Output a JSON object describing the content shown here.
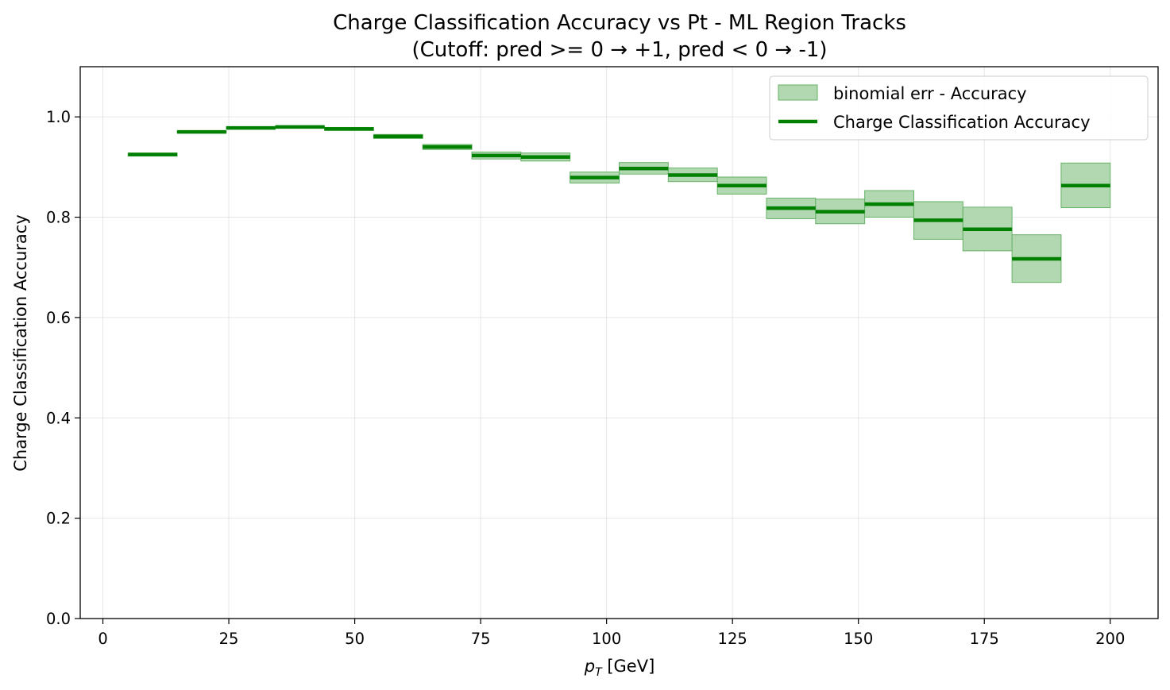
{
  "chart_data": {
    "type": "step",
    "title": "Charge Classification Accuracy vs Pt - ML Region Tracks",
    "subtitle": "(Cutoff: pred >= 0 → +1, pred < 0 → -1)",
    "xlabel_main": "p",
    "xlabel_sub": "T",
    "xlabel_unit": " [GeV]",
    "ylabel": "Charge Classification Accuracy",
    "xlim": [
      -4.5,
      209.5
    ],
    "ylim": [
      0.0,
      1.1
    ],
    "xticks": [
      0,
      25,
      50,
      75,
      100,
      125,
      150,
      175,
      200
    ],
    "yticks": [
      0.0,
      0.2,
      0.4,
      0.6,
      0.8,
      1.0
    ],
    "ytick_labels": [
      "0.0",
      "0.2",
      "0.4",
      "0.6",
      "0.8",
      "1.0"
    ],
    "grid": true,
    "legend_position": "top-right",
    "legend": {
      "band_label": "binomial err - Accuracy",
      "line_label": "Charge Classification Accuracy"
    },
    "colors": {
      "line": "#008000",
      "band_fill": "#b2d8b2",
      "band_edge": "#66b266"
    },
    "bins": [
      {
        "x0": 5.0,
        "x1": 14.75,
        "value": 0.925,
        "lo": 0.922,
        "hi": 0.928
      },
      {
        "x0": 14.75,
        "x1": 24.5,
        "value": 0.97,
        "lo": 0.968,
        "hi": 0.972
      },
      {
        "x0": 24.5,
        "x1": 34.25,
        "value": 0.978,
        "lo": 0.976,
        "hi": 0.98
      },
      {
        "x0": 34.25,
        "x1": 44.0,
        "value": 0.98,
        "lo": 0.978,
        "hi": 0.982
      },
      {
        "x0": 44.0,
        "x1": 53.75,
        "value": 0.976,
        "lo": 0.973,
        "hi": 0.979
      },
      {
        "x0": 53.75,
        "x1": 63.5,
        "value": 0.961,
        "lo": 0.957,
        "hi": 0.965
      },
      {
        "x0": 63.5,
        "x1": 73.25,
        "value": 0.94,
        "lo": 0.935,
        "hi": 0.945
      },
      {
        "x0": 73.25,
        "x1": 83.0,
        "value": 0.923,
        "lo": 0.916,
        "hi": 0.93
      },
      {
        "x0": 83.0,
        "x1": 92.75,
        "value": 0.92,
        "lo": 0.912,
        "hi": 0.928
      },
      {
        "x0": 92.75,
        "x1": 102.5,
        "value": 0.879,
        "lo": 0.868,
        "hi": 0.89
      },
      {
        "x0": 102.5,
        "x1": 112.25,
        "value": 0.897,
        "lo": 0.886,
        "hi": 0.909
      },
      {
        "x0": 112.25,
        "x1": 122.0,
        "value": 0.884,
        "lo": 0.871,
        "hi": 0.898
      },
      {
        "x0": 122.0,
        "x1": 131.75,
        "value": 0.863,
        "lo": 0.846,
        "hi": 0.88
      },
      {
        "x0": 131.75,
        "x1": 141.5,
        "value": 0.818,
        "lo": 0.797,
        "hi": 0.838
      },
      {
        "x0": 141.5,
        "x1": 151.25,
        "value": 0.811,
        "lo": 0.787,
        "hi": 0.836
      },
      {
        "x0": 151.25,
        "x1": 161.0,
        "value": 0.826,
        "lo": 0.8,
        "hi": 0.853
      },
      {
        "x0": 161.0,
        "x1": 170.75,
        "value": 0.794,
        "lo": 0.756,
        "hi": 0.831
      },
      {
        "x0": 170.75,
        "x1": 180.5,
        "value": 0.776,
        "lo": 0.733,
        "hi": 0.82
      },
      {
        "x0": 180.5,
        "x1": 190.25,
        "value": 0.717,
        "lo": 0.67,
        "hi": 0.765
      },
      {
        "x0": 190.25,
        "x1": 200.0,
        "value": 0.863,
        "lo": 0.819,
        "hi": 0.908
      }
    ]
  }
}
